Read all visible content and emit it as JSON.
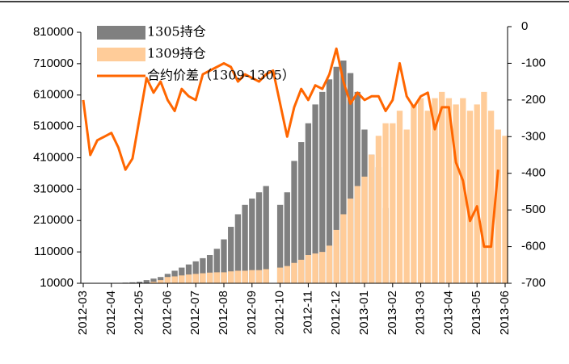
{
  "chart_data": {
    "type": "bar-line",
    "categories": [
      "2012-03",
      null,
      null,
      null,
      "2012-04",
      null,
      null,
      null,
      "2012-05",
      null,
      null,
      null,
      "2012-06",
      null,
      null,
      null,
      "2012-07",
      null,
      null,
      null,
      "2012-08",
      null,
      null,
      null,
      "2012-09",
      null,
      null,
      null,
      "2012-10",
      null,
      null,
      null,
      "2012-11",
      null,
      null,
      null,
      "2012-12",
      null,
      null,
      null,
      "2013-01",
      null,
      null,
      null,
      "2013-02",
      null,
      null,
      null,
      "2013-03",
      null,
      null,
      null,
      "2013-04",
      null,
      null,
      null,
      "2013-05",
      null,
      null,
      null,
      "2013-06"
    ],
    "series": [
      {
        "name": "1305持仓",
        "color": "#808080",
        "type": "bar",
        "values": [
          10000,
          10000,
          10000,
          10000,
          10000,
          10000,
          12000,
          13000,
          15000,
          20000,
          25000,
          30000,
          40000,
          50000,
          60000,
          70000,
          80000,
          90000,
          100000,
          120000,
          150000,
          190000,
          230000,
          260000,
          280000,
          300000,
          320000,
          10000,
          260000,
          300000,
          400000,
          460000,
          520000,
          580000,
          620000,
          660000,
          700000,
          720000,
          680000,
          620000,
          500000,
          420000,
          380000,
          250000,
          20000,
          10000,
          10000,
          10000,
          10000,
          10000,
          10000,
          10000,
          10000,
          10000,
          10000,
          10000,
          10000,
          10000,
          10000,
          10000,
          10000
        ]
      },
      {
        "name": "1309持仓",
        "color": "#FFCC99",
        "type": "bar",
        "values": [
          10000,
          10000,
          10000,
          10000,
          10000,
          10000,
          10000,
          10000,
          10000,
          10000,
          15000,
          20000,
          30000,
          32000,
          35000,
          38000,
          40000,
          42000,
          44000,
          45000,
          45000,
          48000,
          50000,
          50000,
          52000,
          52000,
          55000,
          10000,
          60000,
          65000,
          75000,
          85000,
          100000,
          105000,
          110000,
          130000,
          180000,
          230000,
          280000,
          320000,
          350000,
          420000,
          480000,
          520000,
          520000,
          560000,
          500000,
          580000,
          600000,
          560000,
          600000,
          620000,
          600000,
          580000,
          600000,
          560000,
          580000,
          620000,
          560000,
          500000,
          480000
        ]
      },
      {
        "name": "合约价差（1309-1305）",
        "color": "#FF6600",
        "type": "line",
        "axis": "y2",
        "values": [
          -200,
          -350,
          -310,
          -300,
          -290,
          -330,
          -390,
          -360,
          -250,
          -140,
          -180,
          -150,
          -200,
          -230,
          -170,
          -190,
          -200,
          -130,
          -120,
          -110,
          -100,
          -110,
          -150,
          -130,
          -140,
          -150,
          -130,
          -120,
          -210,
          -300,
          -220,
          -170,
          -200,
          -160,
          -170,
          -130,
          -60,
          -150,
          -210,
          -180,
          -200,
          -190,
          -190,
          -230,
          -200,
          -100,
          -190,
          -220,
          -190,
          -180,
          -280,
          -220,
          -220,
          -370,
          -420,
          -530,
          -490,
          -600,
          -600,
          -390,
          null
        ]
      }
    ],
    "ylim": [
      10000,
      810000
    ],
    "yticks": [
      10000,
      110000,
      210000,
      310000,
      410000,
      510000,
      610000,
      710000,
      810000
    ],
    "y2lim": [
      -700,
      0
    ],
    "y2ticks": [
      -700,
      -600,
      -500,
      -400,
      -300,
      -200,
      -100,
      0
    ],
    "legend": "upper left"
  }
}
